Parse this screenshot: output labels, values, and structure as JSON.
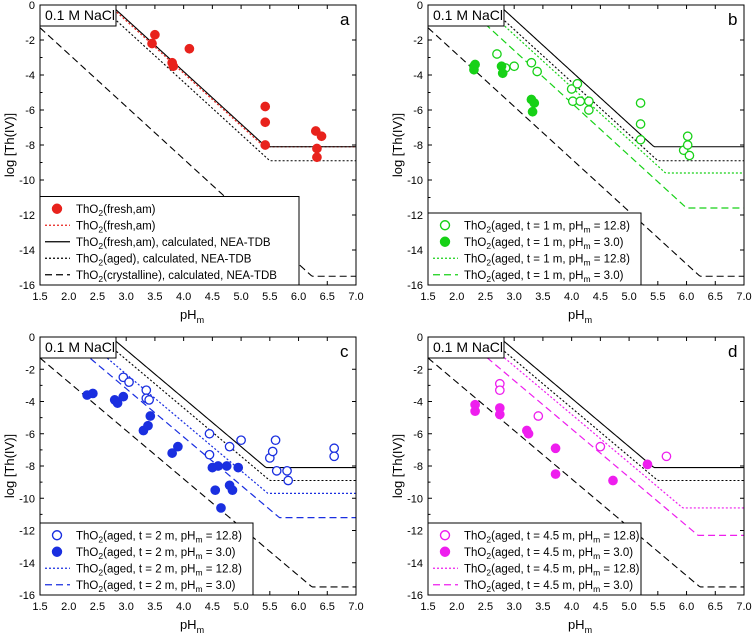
{
  "figure": {
    "title": "log [Th(IV)] vs pHm in 0.1 M NaCl"
  },
  "chart_data": [
    {
      "type": "scatter",
      "panel": "a",
      "tag": "0.1 M NaCl",
      "xlabel_main": "pH",
      "xlabel_sub": "m",
      "ylabel": "log [Th(IV)]",
      "xlim": [
        1.5,
        7.0
      ],
      "ylim": [
        -16,
        0
      ],
      "xticks": [
        "1.5",
        "2.0",
        "2.5",
        "3.0",
        "3.5",
        "4.0",
        "4.5",
        "5.0",
        "5.5",
        "6.0",
        "6.5",
        "7.0"
      ],
      "yticks": [
        "0",
        "-2",
        "-4",
        "-6",
        "-8",
        "-10",
        "-12",
        "-14",
        "-16"
      ],
      "legend_position": "bottom-left",
      "color": "#e8221c",
      "series": [
        {
          "name": "ThO2(fresh,am)",
          "kind": "filled",
          "color": "#e8221c",
          "points": [
            [
              3.45,
              -2.2
            ],
            [
              3.5,
              -1.7
            ],
            [
              3.8,
              -3.3
            ],
            [
              3.82,
              -3.5
            ],
            [
              4.1,
              -2.5
            ],
            [
              5.42,
              -5.8
            ],
            [
              5.42,
              -6.7
            ],
            [
              5.42,
              -8.0
            ],
            [
              6.3,
              -7.2
            ],
            [
              6.32,
              -8.2
            ],
            [
              6.32,
              -8.7
            ],
            [
              6.4,
              -7.5
            ]
          ],
          "legend_parts": [
            "ThO",
            "2",
            "(fresh,am)"
          ]
        },
        {
          "name": "ThO2(fresh,am) fit",
          "kind": "line",
          "dash": "dot",
          "color": "#e8221c",
          "logK": 8.1,
          "floor": -8.1,
          "legend_parts": [
            "ThO",
            "2",
            "(fresh,am)"
          ]
        },
        {
          "name": "ThO2(fresh,am), calculated, NEA-TDB",
          "kind": "line",
          "dash": "solid",
          "color": "#000000",
          "logK": 8.2,
          "floor": -8.1,
          "legend_parts": [
            "ThO",
            "2",
            "(fresh,am), calculated, NEA-TDB"
          ]
        },
        {
          "name": "ThO2(aged), calculated, NEA-TDB",
          "kind": "line",
          "dash": "dot",
          "color": "#000000",
          "logK": 7.6,
          "floor": -8.9,
          "legend_parts": [
            "ThO",
            "2",
            "(aged), calculated, NEA-TDB"
          ]
        },
        {
          "name": "ThO2(crystalline), calculated, NEA-TDB",
          "kind": "line",
          "dash": "dash",
          "color": "#000000",
          "logK": 3.2,
          "floor": -15.5,
          "legend_parts": [
            "ThO",
            "2",
            "(crystalline), calculated, NEA-TDB"
          ]
        }
      ]
    },
    {
      "type": "scatter",
      "panel": "b",
      "tag": "0.1 M NaCl",
      "xlabel_main": "pH",
      "xlabel_sub": "m",
      "ylabel": "log [Th(IV)]",
      "xlim": [
        1.5,
        7.0
      ],
      "ylim": [
        -16,
        0
      ],
      "xticks": [
        "1.5",
        "2.0",
        "2.5",
        "3.0",
        "3.5",
        "4.0",
        "4.5",
        "5.0",
        "5.5",
        "6.0",
        "6.5",
        "7.0"
      ],
      "yticks": [
        "0",
        "-2",
        "-4",
        "-6",
        "-8",
        "-10",
        "-12",
        "-14",
        "-16"
      ],
      "legend_position": "bottom-left",
      "color": "#17d117",
      "series": [
        {
          "name": "ThO2(aged, t = 1 m, pHm = 12.8)",
          "kind": "open",
          "color": "#17d117",
          "points": [
            [
              2.7,
              -2.8
            ],
            [
              2.85,
              -3.6
            ],
            [
              3.0,
              -3.5
            ],
            [
              3.3,
              -3.3
            ],
            [
              3.4,
              -3.8
            ],
            [
              4.0,
              -4.8
            ],
            [
              4.02,
              -5.5
            ],
            [
              4.1,
              -4.5
            ],
            [
              4.15,
              -5.5
            ],
            [
              4.3,
              -5.5
            ],
            [
              4.3,
              -6.0
            ],
            [
              5.2,
              -5.6
            ],
            [
              5.2,
              -6.8
            ],
            [
              5.2,
              -7.7
            ],
            [
              5.95,
              -8.3
            ],
            [
              6.02,
              -7.5
            ],
            [
              6.02,
              -8.0
            ],
            [
              6.05,
              -8.6
            ]
          ],
          "legend_parts": [
            "ThO",
            "2",
            "(aged, t = 1 m, pH",
            "m",
            " = 12.8)"
          ]
        },
        {
          "name": "ThO2(aged, t = 1 m, pHm = 3.0)",
          "kind": "filled",
          "color": "#17d117",
          "points": [
            [
              2.3,
              -3.5
            ],
            [
              2.3,
              -3.7
            ],
            [
              2.32,
              -3.4
            ],
            [
              2.78,
              -3.5
            ],
            [
              2.8,
              -3.9
            ],
            [
              3.3,
              -5.4
            ],
            [
              3.32,
              -6.1
            ],
            [
              3.35,
              -5.6
            ]
          ],
          "legend_parts": [
            "ThO",
            "2",
            "(aged, t = 1 m, pH",
            "m",
            " = 3.0)"
          ]
        },
        {
          "name": "fit pHm = 12.8",
          "kind": "line",
          "dash": "dot",
          "color": "#17d117",
          "logK": 7.3,
          "floor": -9.6,
          "legend_parts": [
            "ThO",
            "2",
            "(aged, t = 1 m, pH",
            "m",
            " = 12.8)"
          ]
        },
        {
          "name": "fit pHm = 3.0",
          "kind": "line",
          "dash": "dash",
          "color": "#17d117",
          "logK": 6.4,
          "floor": -11.6,
          "legend_parts": [
            "ThO",
            "2",
            "(aged, t = 1 m, pH",
            "m",
            " = 3.0)"
          ]
        },
        {
          "name": "ThO2(fresh,am), calculated, NEA-TDB",
          "kind": "line",
          "dash": "solid",
          "color": "#000000",
          "logK": 8.2,
          "floor": -8.1,
          "in_legend": false
        },
        {
          "name": "ThO2(aged), calculated, NEA-TDB",
          "kind": "line",
          "dash": "dot",
          "color": "#000000",
          "logK": 7.6,
          "floor": -8.9,
          "in_legend": false
        },
        {
          "name": "ThO2(crystalline), calculated, NEA-TDB",
          "kind": "line",
          "dash": "dash",
          "color": "#000000",
          "logK": 3.2,
          "floor": -15.5,
          "in_legend": false
        }
      ]
    },
    {
      "type": "scatter",
      "panel": "c",
      "tag": "0.1 M NaCl",
      "xlabel_main": "pH",
      "xlabel_sub": "m",
      "ylabel": "log [Th(IV)]",
      "xlim": [
        1.5,
        7.0
      ],
      "ylim": [
        -16,
        0
      ],
      "xticks": [
        "1.5",
        "2.0",
        "2.5",
        "3.0",
        "3.5",
        "4.0",
        "4.5",
        "5.0",
        "5.5",
        "6.0",
        "6.5",
        "7.0"
      ],
      "yticks": [
        "0",
        "-2",
        "-4",
        "-6",
        "-8",
        "-10",
        "-12",
        "-14",
        "-16"
      ],
      "legend_position": "bottom-left",
      "color": "#1a2fe0",
      "series": [
        {
          "name": "ThO2(aged, t = 2 m, pHm = 12.8)",
          "kind": "open",
          "color": "#1a2fe0",
          "points": [
            [
              2.95,
              -2.5
            ],
            [
              3.05,
              -2.8
            ],
            [
              3.35,
              -3.3
            ],
            [
              3.35,
              -3.8
            ],
            [
              3.4,
              -3.9
            ],
            [
              4.45,
              -6.0
            ],
            [
              4.45,
              -7.3
            ],
            [
              4.8,
              -6.8
            ],
            [
              5.0,
              -6.4
            ],
            [
              5.5,
              -7.5
            ],
            [
              5.55,
              -7.1
            ],
            [
              5.6,
              -6.4
            ],
            [
              5.62,
              -8.3
            ],
            [
              5.8,
              -8.3
            ],
            [
              5.82,
              -8.9
            ],
            [
              6.62,
              -6.9
            ],
            [
              6.62,
              -7.4
            ]
          ],
          "legend_parts": [
            "ThO",
            "2",
            "(aged, t = 2 m, pH",
            "m",
            " = 12.8)"
          ]
        },
        {
          "name": "ThO2(aged, t = 2 m, pHm = 3.0)",
          "kind": "filled",
          "color": "#1a2fe0",
          "points": [
            [
              2.32,
              -3.6
            ],
            [
              2.42,
              -3.5
            ],
            [
              2.8,
              -3.9
            ],
            [
              2.85,
              -4.1
            ],
            [
              2.95,
              -3.7
            ],
            [
              3.3,
              -5.8
            ],
            [
              3.38,
              -5.5
            ],
            [
              3.42,
              -4.9
            ],
            [
              3.8,
              -7.2
            ],
            [
              3.9,
              -6.8
            ],
            [
              4.5,
              -8.1
            ],
            [
              4.55,
              -9.5
            ],
            [
              4.6,
              -8.0
            ],
            [
              4.65,
              -10.6
            ],
            [
              4.75,
              -8.0
            ],
            [
              4.8,
              -9.2
            ],
            [
              4.85,
              -9.5
            ],
            [
              4.95,
              -8.1
            ]
          ],
          "legend_parts": [
            "ThO",
            "2",
            "(aged, t = 2 m, pH",
            "m",
            " = 3.0)"
          ]
        },
        {
          "name": "fit pHm = 12.8",
          "kind": "line",
          "dash": "dot",
          "color": "#1a2fe0",
          "logK": 6.7,
          "floor": -9.7,
          "legend_parts": [
            "ThO",
            "2",
            "(aged, t = 2 m, pH",
            "m",
            " = 12.8)"
          ]
        },
        {
          "name": "fit pHm = 3.0",
          "kind": "line",
          "dash": "dash",
          "color": "#1a2fe0",
          "logK": 5.8,
          "floor": -11.2,
          "legend_parts": [
            "ThO",
            "2",
            "(aged, t = 2 m, pH",
            "m",
            " = 3.0)"
          ]
        },
        {
          "name": "ThO2(fresh,am), calculated, NEA-TDB",
          "kind": "line",
          "dash": "solid",
          "color": "#000000",
          "logK": 8.2,
          "floor": -8.1,
          "in_legend": false
        },
        {
          "name": "ThO2(aged), calculated, NEA-TDB",
          "kind": "line",
          "dash": "dot",
          "color": "#000000",
          "logK": 7.6,
          "floor": -8.9,
          "in_legend": false
        },
        {
          "name": "ThO2(crystalline), calculated, NEA-TDB",
          "kind": "line",
          "dash": "dash",
          "color": "#000000",
          "logK": 3.2,
          "floor": -15.5,
          "in_legend": false
        }
      ]
    },
    {
      "type": "scatter",
      "panel": "d",
      "tag": "0.1 M NaCl",
      "xlabel_main": "pH",
      "xlabel_sub": "m",
      "ylabel": "log [Th(IV)]",
      "xlim": [
        1.5,
        7.0
      ],
      "ylim": [
        -16,
        0
      ],
      "xticks": [
        "1.5",
        "2.0",
        "2.5",
        "3.0",
        "3.5",
        "4.0",
        "4.5",
        "5.0",
        "5.5",
        "6.0",
        "6.5",
        "7.0"
      ],
      "yticks": [
        "0",
        "-2",
        "-4",
        "-6",
        "-8",
        "-10",
        "-12",
        "-14",
        "-16"
      ],
      "legend_position": "bottom-left",
      "color": "#ee1eee",
      "series": [
        {
          "name": "ThO2(aged, t = 4.5 m, pHm = 12.8)",
          "kind": "open",
          "color": "#ee1eee",
          "points": [
            [
              2.75,
              -2.9
            ],
            [
              2.75,
              -3.3
            ],
            [
              3.42,
              -4.9
            ],
            [
              4.5,
              -6.8
            ],
            [
              5.65,
              -7.4
            ]
          ],
          "legend_parts": [
            "ThO",
            "2",
            "(aged, t = 4.5 m, pH",
            "m",
            " = 12.8)"
          ]
        },
        {
          "name": "ThO2(aged, t = 4.5 m, pHm = 3.0)",
          "kind": "filled",
          "color": "#ee1eee",
          "points": [
            [
              2.32,
              -4.2
            ],
            [
              2.32,
              -4.6
            ],
            [
              2.75,
              -4.4
            ],
            [
              2.75,
              -4.8
            ],
            [
              3.22,
              -5.8
            ],
            [
              3.25,
              -6.0
            ],
            [
              3.72,
              -6.9
            ],
            [
              3.72,
              -8.5
            ],
            [
              4.72,
              -8.9
            ],
            [
              5.32,
              -7.9
            ]
          ],
          "legend_parts": [
            "ThO",
            "2",
            "(aged, t = 4.5 m, pH",
            "m",
            " = 3.0)"
          ]
        },
        {
          "name": "fit pHm = 12.8",
          "kind": "line",
          "dash": "dot",
          "color": "#ee1eee",
          "logK": 7.2,
          "floor": -10.6,
          "legend_parts": [
            "ThO",
            "2",
            "(aged, t = 4.5 m, pH",
            "m",
            " = 12.8)"
          ]
        },
        {
          "name": "fit pHm = 3.0",
          "kind": "line",
          "dash": "dash",
          "color": "#ee1eee",
          "logK": 6.3,
          "floor": -12.3,
          "legend_parts": [
            "ThO",
            "2",
            "(aged, t = 4.5 m, pH",
            "m",
            " = 3.0)"
          ]
        },
        {
          "name": "ThO2(fresh,am), calculated, NEA-TDB",
          "kind": "line",
          "dash": "solid",
          "color": "#000000",
          "logK": 8.2,
          "floor": -8.1,
          "in_legend": false
        },
        {
          "name": "ThO2(aged), calculated, NEA-TDB",
          "kind": "line",
          "dash": "dot",
          "color": "#000000",
          "logK": 7.6,
          "floor": -8.9,
          "in_legend": false
        },
        {
          "name": "ThO2(crystalline), calculated, NEA-TDB",
          "kind": "line",
          "dash": "dash",
          "color": "#000000",
          "logK": 3.2,
          "floor": -15.5,
          "in_legend": false
        }
      ]
    }
  ]
}
